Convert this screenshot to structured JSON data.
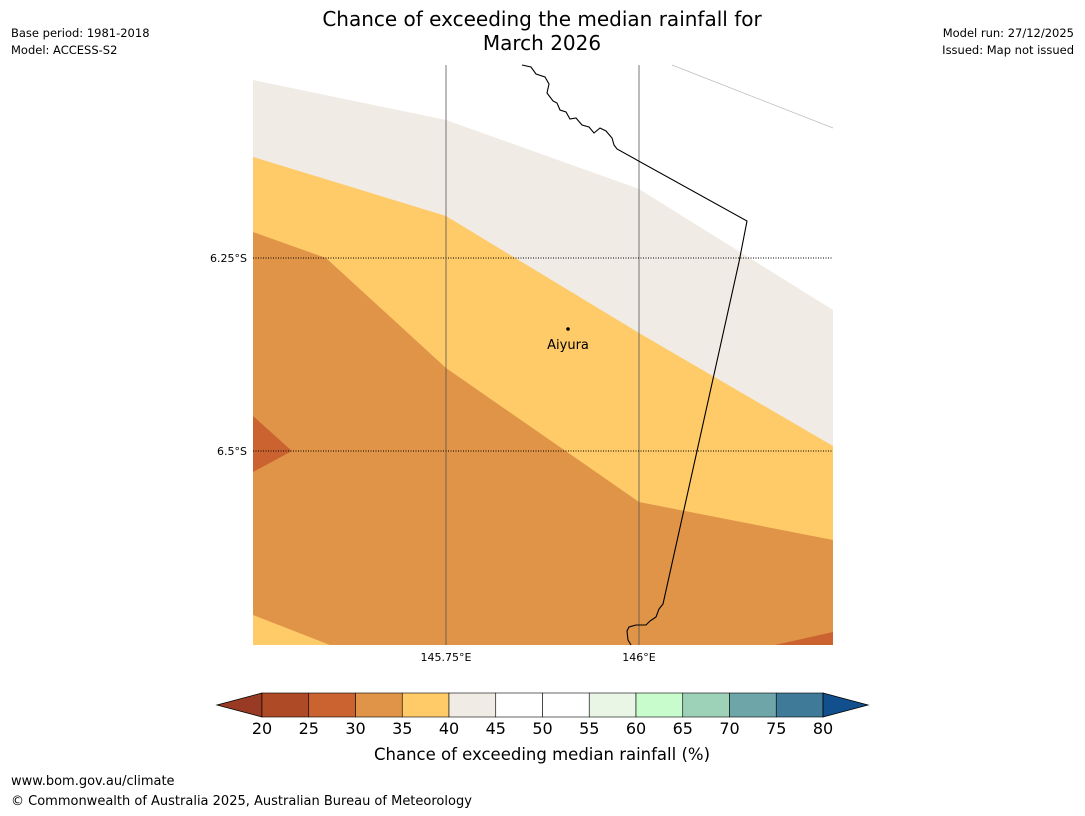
{
  "header": {
    "title_line1": "Chance of exceeding the median rainfall for",
    "title_line2": "March 2026",
    "base_period": "Base period: 1981-2018",
    "model": "Model: ACCESS-S2",
    "model_run": "Model run: 27/12/2025",
    "issued": "Issued: Map not issued"
  },
  "map": {
    "lat_labels": [
      "6.25°S",
      "6.5°S"
    ],
    "lon_labels": [
      "145.75°E",
      "146°E"
    ],
    "town": {
      "name": "Aiyura"
    },
    "regions": [
      {
        "name": "light-region-40-45",
        "category": "40-45",
        "color": "#f0ebe5"
      },
      {
        "name": "yellow-band-35-40",
        "category": "35-40",
        "color": "#fecb68"
      },
      {
        "name": "orange-region-30-35",
        "category": "30-35",
        "color": "#e09448"
      },
      {
        "name": "dark-orange-patch-25-30",
        "category": "25-30",
        "color": "#cb6330"
      }
    ]
  },
  "colorbar": {
    "ticks": [
      "20",
      "25",
      "30",
      "35",
      "40",
      "45",
      "50",
      "55",
      "60",
      "65",
      "70",
      "75",
      "80"
    ],
    "colors": [
      "#ae4a25",
      "#cb6330",
      "#e09448",
      "#fecb68",
      "#f0ebe5",
      "#ffffff",
      "#ffffff",
      "#e9f6e6",
      "#c8fccc",
      "#9dd1b8",
      "#6ea5a8",
      "#3f7a99"
    ],
    "under_color": "#983a24",
    "over_color": "#124f8d",
    "label": "Chance of exceeding median rainfall (%)"
  },
  "footer": {
    "url": "www.bom.gov.au/climate",
    "copyright": "© Commonwealth of Australia 2025, Australian Bureau of Meteorology"
  }
}
